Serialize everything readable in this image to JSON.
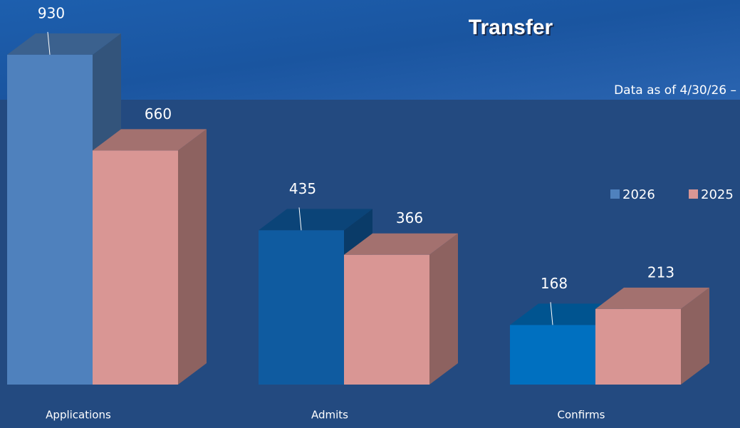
{
  "chart_data": {
    "type": "bar3d",
    "title": "Transfer",
    "subtitle": "Data as of 4/30/26 –",
    "categories": [
      "Applications",
      "Admits",
      "Confirms"
    ],
    "series": [
      {
        "name": "2026",
        "color": "#4f81bd",
        "colors": [
          "#4f81bd",
          "#0f5ba0",
          "#0070c0"
        ],
        "values": [
          930,
          435,
          168
        ]
      },
      {
        "name": "2025",
        "color": "#d99694",
        "values": [
          660,
          366,
          213
        ]
      }
    ],
    "legend": "right"
  }
}
